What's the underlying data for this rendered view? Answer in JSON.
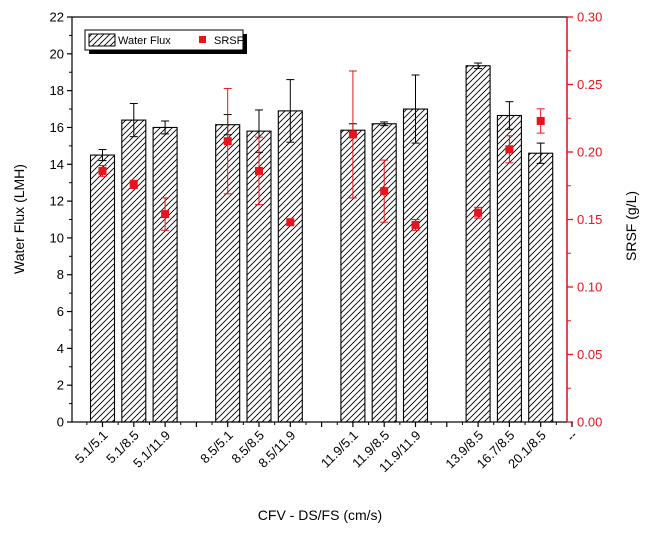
{
  "chart_data": {
    "type": "bar",
    "xlabel": "CFV - DS/FS (cm/s)",
    "ylabel": "Water Flux (LMH)",
    "y2label": "SRSF (g/L)",
    "ylim": [
      0,
      22
    ],
    "y2lim": [
      0,
      0.3
    ],
    "yticks": [
      "0",
      "2",
      "4",
      "6",
      "8",
      "10",
      "12",
      "14",
      "16",
      "18",
      "20",
      "22"
    ],
    "y2ticks": [
      "0.00",
      "0.05",
      "0.10",
      "0.15",
      "0.20",
      "0.25",
      "0.30"
    ],
    "categories": [
      "5.1/5.1",
      "5.1/8.5",
      "5.1/11.9",
      "",
      "8.5/5.1",
      "8.5/8.5",
      "8.5/11.9",
      "",
      "11.9/5.1",
      "11.9/8.5",
      "11.9/11.9",
      "",
      "13.9/8.5",
      "16.7/8.5",
      "20.1/8.5",
      "--"
    ],
    "series": [
      {
        "name": "Water Flux",
        "axis": "left",
        "style": "hatched-bar",
        "values": [
          14.5,
          16.4,
          16.0,
          null,
          16.15,
          15.8,
          16.9,
          null,
          15.85,
          16.2,
          17.0,
          null,
          19.35,
          16.65,
          14.6,
          null
        ],
        "errors": [
          0.3,
          0.9,
          0.35,
          null,
          0.55,
          1.15,
          1.7,
          null,
          0.35,
          0.1,
          1.85,
          null,
          0.15,
          0.75,
          0.55,
          null
        ]
      },
      {
        "name": "SRSF",
        "axis": "right",
        "style": "red-square",
        "values": [
          0.186,
          0.176,
          0.154,
          null,
          0.208,
          0.186,
          0.148,
          null,
          0.213,
          0.171,
          0.146,
          null,
          0.155,
          0.202,
          0.223,
          null
        ],
        "errors": [
          0.004,
          0.003,
          0.012,
          null,
          0.039,
          0.025,
          null,
          null,
          0.047,
          0.023,
          0.004,
          null,
          0.004,
          0.01,
          0.009,
          null
        ]
      }
    ],
    "legend_position": "top-left",
    "colors": {
      "bar_stroke": "#000000",
      "srsf": "#e8141b",
      "right_axis": "#e8141b"
    }
  }
}
